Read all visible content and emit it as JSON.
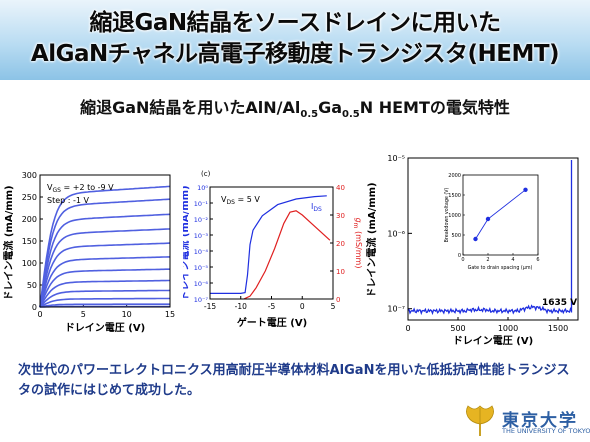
{
  "header": {
    "title_line1": "縮退GaN結晶をソースドレインに用いた",
    "title_line2": "AlGaNチャネル高電子移動度トランジスタ(HEMT)"
  },
  "subtitle": {
    "prefix": "縮退GaN結晶を用いたAlN/Al",
    "sub1": "0.5",
    "mid": "Ga",
    "sub2": "0.5",
    "suffix": "N HEMTの電気特性"
  },
  "caption": {
    "text": "次世代のパワーエレクトロニクス用高耐圧半導体材料AlGaNを用いた低抵抗高性能トランジスタの試作にはじめて成功した。"
  },
  "logo": {
    "name": "東京大学",
    "sub": "THE UNIVERSITY OF TOKYO"
  },
  "colors": {
    "curve_blue": "#5060e0",
    "gm_red": "#e02020",
    "ids_blue": "#1f2fe0",
    "banner": "#8cc3e6",
    "caption": "#1f3b8a"
  },
  "chart_data": [
    {
      "type": "line",
      "xlabel": "ドレイン電圧 (V)",
      "ylabel": "ドレイン電流 (mA/mm)",
      "xlim": [
        0,
        15
      ],
      "ylim": [
        0,
        300
      ],
      "xticks": [
        "0",
        "5",
        "10",
        "15"
      ],
      "yticks": [
        "0",
        "50",
        "100",
        "150",
        "200",
        "250",
        "300"
      ],
      "annotation_vgs": "V",
      "annotation_vgs_sub": "GS",
      "annotation_vgs_val": " = +2 to -9 V",
      "annotation_step": "Step : -1 V",
      "series": [
        {
          "isat": 255
        },
        {
          "isat": 228
        },
        {
          "isat": 196
        },
        {
          "isat": 165
        },
        {
          "isat": 135
        },
        {
          "isat": 106
        },
        {
          "isat": 80
        },
        {
          "isat": 56
        },
        {
          "isat": 35
        },
        {
          "isat": 18
        },
        {
          "isat": 6
        },
        {
          "isat": 1
        }
      ]
    },
    {
      "type": "line",
      "panel_label": "(c)",
      "xlabel": "ゲート電圧 (V)",
      "ylabel": "ドレイン電流 (mA/mm)",
      "y2label": "g",
      "y2label_sub": "m",
      "y2label_unit": " (mS/mm)",
      "xlim": [
        -15,
        5
      ],
      "xticks": [
        "-15",
        "-10",
        "-5",
        "0",
        "5"
      ],
      "yticks": [
        "10⁰",
        "10⁻¹",
        "10⁻²",
        "10⁻³",
        "10⁻⁴",
        "10⁻⁵",
        "10⁻⁶",
        "10⁻⁷"
      ],
      "y2lim": [
        0,
        40
      ],
      "y2ticks": [
        "0",
        "10",
        "20",
        "30",
        "40"
      ],
      "annotation_vds": "V",
      "annotation_vds_sub": "DS",
      "annotation_vds_val": " = 5 V",
      "ids_label": "I",
      "ids_label_sub": "DS",
      "ids_log10": [
        [
          -15,
          -6.65
        ],
        [
          -10,
          -6.65
        ],
        [
          -9.3,
          -6.6
        ],
        [
          -8.9,
          -5.5
        ],
        [
          -8.5,
          -3.6
        ],
        [
          -8.0,
          -2.7
        ],
        [
          -6.5,
          -1.8
        ],
        [
          -4,
          -1.1
        ],
        [
          -1,
          -0.75
        ],
        [
          2,
          -0.6
        ],
        [
          4,
          -0.55
        ]
      ],
      "gm": [
        [
          -9.5,
          0
        ],
        [
          -8.5,
          1
        ],
        [
          -7.5,
          4
        ],
        [
          -6,
          10
        ],
        [
          -4.5,
          18
        ],
        [
          -3,
          27
        ],
        [
          -2,
          31
        ],
        [
          -1,
          31.5
        ],
        [
          0,
          30
        ],
        [
          1.5,
          27
        ],
        [
          3,
          24
        ],
        [
          4.5,
          21
        ]
      ]
    },
    {
      "type": "line",
      "xlabel": "ドレイン電圧 (V)",
      "ylabel": "ドレイン電流 (mA/mm)",
      "xlim": [
        0,
        1700
      ],
      "ylim_log10": [
        -7.15,
        -5
      ],
      "xticks": [
        "0",
        "500",
        "1000",
        "1500"
      ],
      "yticks": [
        "10⁻⁵",
        "10⁻⁶",
        "10⁻⁷"
      ],
      "breakdown_label": "1635 V",
      "breakdown_v": 1635,
      "inset": {
        "type": "scatter",
        "xlabel": "Gate to drain spacing (μm)",
        "ylabel": "Breakdown voltage (V)",
        "xlim": [
          0,
          6
        ],
        "ylim": [
          0,
          2000
        ],
        "xticks": [
          "0",
          "2",
          "4",
          "6"
        ],
        "yticks": [
          "0",
          "500",
          "1000",
          "1500",
          "2000"
        ],
        "points": [
          [
            1,
            400
          ],
          [
            2,
            900
          ],
          [
            5,
            1630
          ]
        ]
      }
    }
  ]
}
